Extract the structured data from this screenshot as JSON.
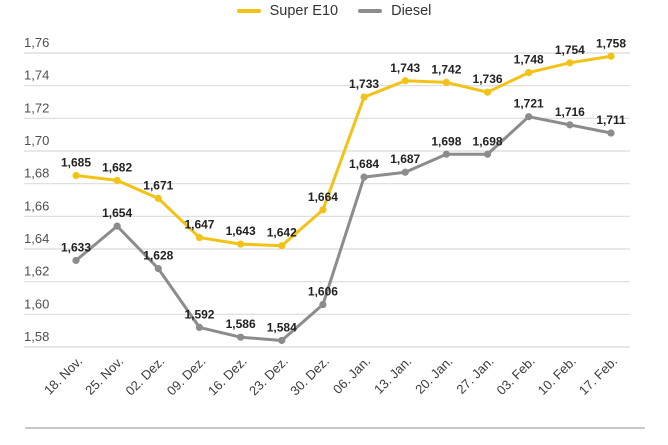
{
  "chart_data": {
    "type": "line",
    "title": "",
    "xlabel": "",
    "ylabel": "",
    "categories": [
      "18. Nov.",
      "25. Nov.",
      "02. Dez.",
      "09. Dez.",
      "16. Dez.",
      "23. Dez.",
      "30. Dez.",
      "06. Jan.",
      "13. Jan.",
      "20. Jan.",
      "27. Jan.",
      "03. Feb.",
      "10. Feb.",
      "17. Feb."
    ],
    "series": [
      {
        "name": "Super E10",
        "color": "#F3C217",
        "values": [
          1.685,
          1.682,
          1.671,
          1.647,
          1.643,
          1.642,
          1.664,
          1.733,
          1.743,
          1.742,
          1.736,
          1.748,
          1.754,
          1.758
        ],
        "labels": [
          "1,685",
          "1,682",
          "1,671",
          "1,647",
          "1,643",
          "1,642",
          "1,664",
          "1,733",
          "1,743",
          "1,742",
          "1,736",
          "1,748",
          "1,754",
          "1,758"
        ]
      },
      {
        "name": "Diesel",
        "color": "#8C8C8C",
        "values": [
          1.633,
          1.654,
          1.628,
          1.592,
          1.586,
          1.584,
          1.606,
          1.684,
          1.687,
          1.698,
          1.698,
          1.721,
          1.716,
          1.711
        ],
        "labels": [
          "1,633",
          "1,654",
          "1,628",
          "1,592",
          "1,586",
          "1,584",
          "1,606",
          "1,684",
          "1,687",
          "1,698",
          "1,698",
          "1,721",
          "1,716",
          "1,711"
        ]
      }
    ],
    "ylim": [
      1.58,
      1.76
    ],
    "ytick_values": [
      1.58,
      1.6,
      1.62,
      1.64,
      1.66,
      1.68,
      1.7,
      1.72,
      1.74,
      1.76
    ],
    "ytick_labels": [
      "1,58",
      "1,60",
      "1,62",
      "1,64",
      "1,66",
      "1,68",
      "1,70",
      "1,72",
      "1,74",
      "1,76"
    ],
    "grid": true,
    "legend_position": "top",
    "point_labels": true,
    "decimal_separator": ","
  },
  "style": {
    "gridline_color": "#dbdbdb",
    "ytick_color": "#4f4f4f",
    "xtick_color": "#3c3c3c",
    "point_label_color": "#222222",
    "legend_text_color": "#333333",
    "divider_color": "#c7c7c7"
  }
}
